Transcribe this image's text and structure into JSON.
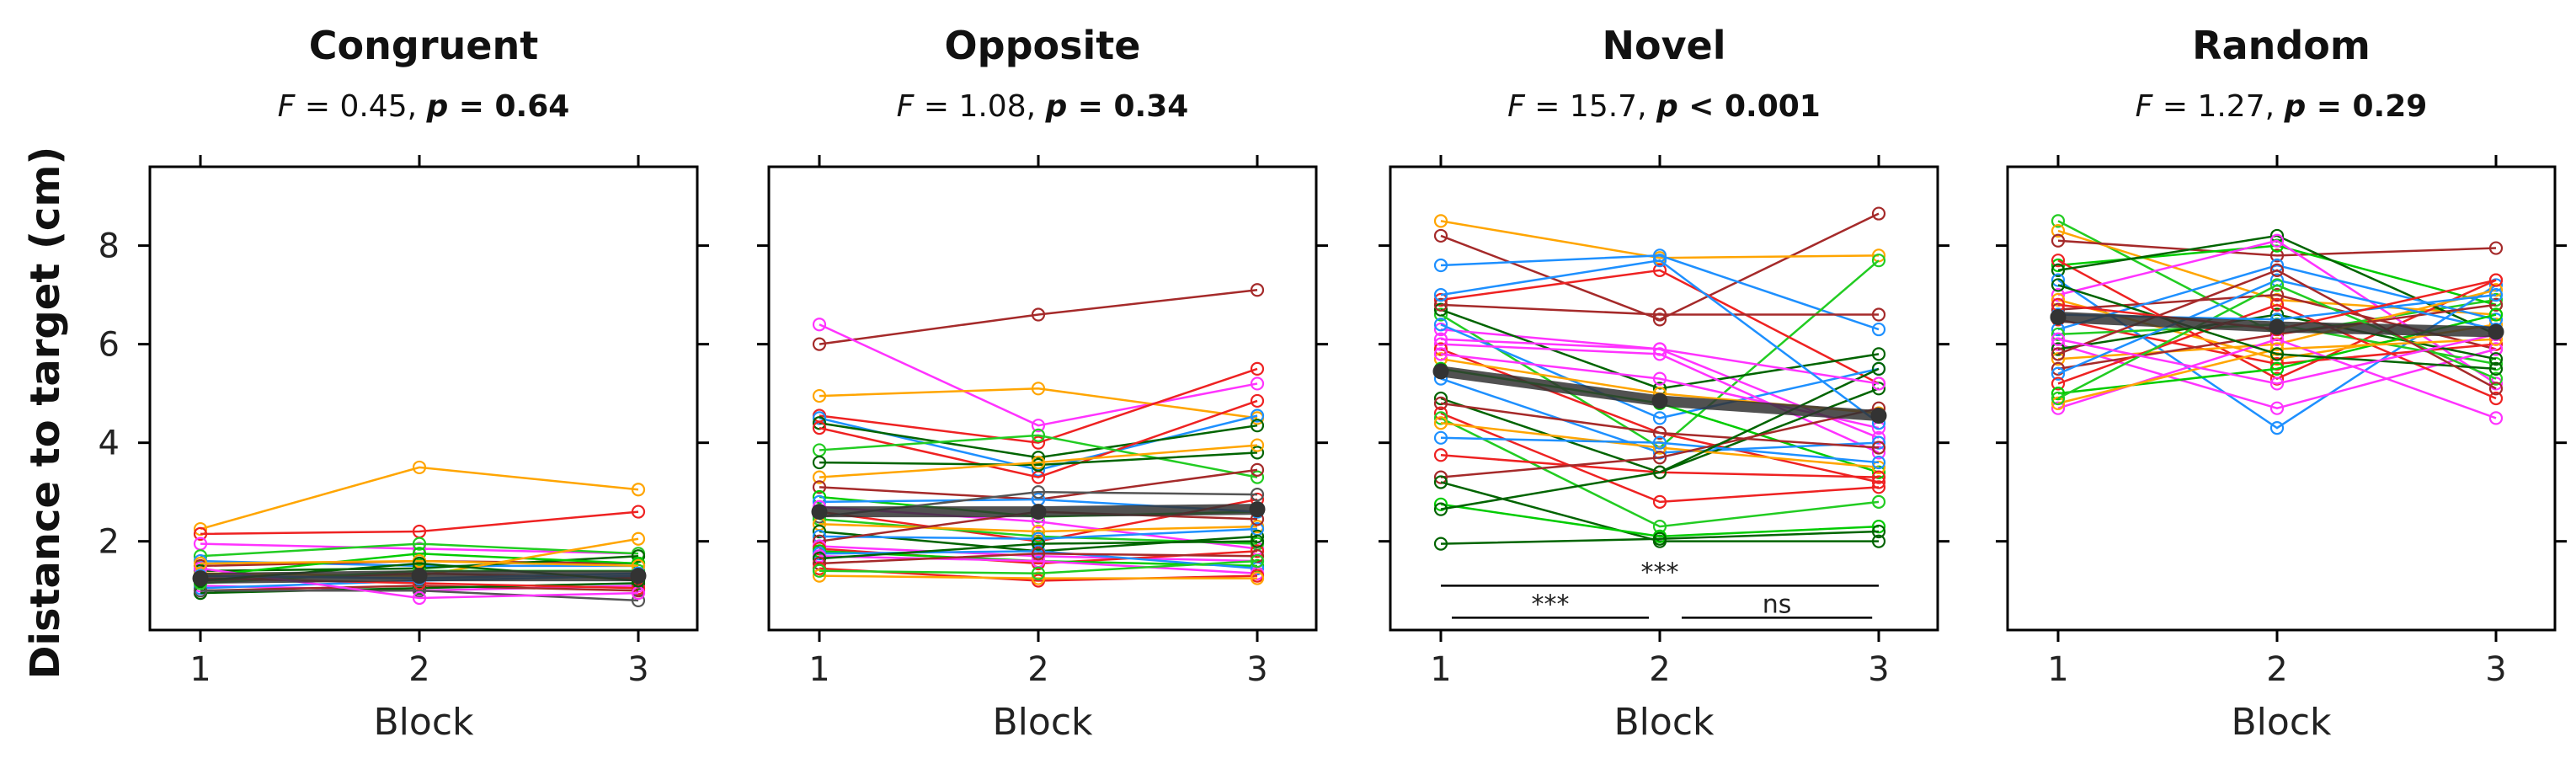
{
  "figure": {
    "ylabel": "Distance to target (cm)"
  },
  "chart_data": [
    {
      "type": "line",
      "title": "Congruent",
      "stat": {
        "f_label": "F",
        "f_text": " = 0.45, ",
        "p_label": "p",
        "p_text": " = 0.64"
      },
      "xlabel": "Block",
      "x": [
        1,
        2,
        3
      ],
      "xticks": [
        "1",
        "2",
        "3"
      ],
      "ylim": [
        0.2,
        9.6
      ],
      "yticks": [
        2,
        4,
        6,
        8
      ],
      "ytick_labels": [
        "2",
        "4",
        "6",
        "8"
      ],
      "show_ytick_labels": true,
      "mean": {
        "values": [
          1.25,
          1.3,
          1.3
        ],
        "color": "#333333"
      },
      "series": [
        {
          "color": "#FFA500",
          "values": [
            2.25,
            3.5,
            3.05
          ]
        },
        {
          "color": "#EE2222",
          "values": [
            2.15,
            2.2,
            2.6
          ]
        },
        {
          "color": "#FF33FF",
          "values": [
            1.95,
            1.85,
            1.75
          ]
        },
        {
          "color": "#22CC22",
          "values": [
            1.7,
            1.95,
            1.75
          ]
        },
        {
          "color": "#1E90FF",
          "values": [
            1.6,
            1.5,
            1.5
          ]
        },
        {
          "color": "#A52A2A",
          "values": [
            1.5,
            1.6,
            1.55
          ]
        },
        {
          "color": "#006400",
          "values": [
            1.4,
            1.45,
            1.7
          ]
        },
        {
          "color": "#00CC00",
          "values": [
            1.3,
            1.75,
            1.55
          ]
        },
        {
          "color": "#FFA500",
          "values": [
            1.35,
            1.3,
            2.05
          ]
        },
        {
          "color": "#EE2222",
          "values": [
            1.2,
            1.35,
            1.25
          ]
        },
        {
          "color": "#FF33FF",
          "values": [
            1.1,
            1.0,
            1.1
          ]
        },
        {
          "color": "#1E90FF",
          "values": [
            1.05,
            1.2,
            1.3
          ]
        },
        {
          "color": "#A52A2A",
          "values": [
            1.0,
            1.1,
            1.0
          ]
        },
        {
          "color": "#006400",
          "values": [
            0.95,
            1.05,
            1.15
          ]
        },
        {
          "color": "#555555",
          "values": [
            1.0,
            1.0,
            0.8
          ]
        },
        {
          "color": "#22CC22",
          "values": [
            1.15,
            1.4,
            1.4
          ]
        },
        {
          "color": "#EE2222",
          "values": [
            1.25,
            1.15,
            1.05
          ]
        },
        {
          "color": "#FF33FF",
          "values": [
            1.45,
            0.85,
            0.95
          ]
        },
        {
          "color": "#FFA500",
          "values": [
            1.55,
            1.6,
            1.5
          ]
        },
        {
          "color": "#1E90FF",
          "values": [
            1.3,
            1.25,
            1.35
          ]
        },
        {
          "color": "#006400",
          "values": [
            1.2,
            1.55,
            1.2
          ]
        }
      ],
      "annotations": []
    },
    {
      "type": "line",
      "title": "Opposite",
      "stat": {
        "f_label": "F",
        "f_text": " = 1.08, ",
        "p_label": "p",
        "p_text": " = 0.34"
      },
      "xlabel": "Block",
      "x": [
        1,
        2,
        3
      ],
      "xticks": [
        "1",
        "2",
        "3"
      ],
      "ylim": [
        0.2,
        9.6
      ],
      "yticks": [
        2,
        4,
        6,
        8
      ],
      "ytick_labels": [],
      "show_ytick_labels": false,
      "mean": {
        "values": [
          2.6,
          2.6,
          2.65
        ],
        "color": "#333333"
      },
      "series": [
        {
          "color": "#A52A2A",
          "values": [
            6.0,
            6.6,
            7.1
          ]
        },
        {
          "color": "#FF33FF",
          "values": [
            6.4,
            4.35,
            5.2
          ]
        },
        {
          "color": "#FFA500",
          "values": [
            4.95,
            5.1,
            4.5
          ]
        },
        {
          "color": "#EE2222",
          "values": [
            4.55,
            4.0,
            5.5
          ]
        },
        {
          "color": "#1E90FF",
          "values": [
            4.5,
            3.45,
            4.55
          ]
        },
        {
          "color": "#006400",
          "values": [
            4.4,
            3.7,
            4.35
          ]
        },
        {
          "color": "#EE2222",
          "values": [
            4.3,
            3.3,
            4.85
          ]
        },
        {
          "color": "#22CC22",
          "values": [
            3.85,
            4.15,
            3.3
          ]
        },
        {
          "color": "#006400",
          "values": [
            3.6,
            3.55,
            3.8
          ]
        },
        {
          "color": "#FFA500",
          "values": [
            3.3,
            3.6,
            3.95
          ]
        },
        {
          "color": "#A52A2A",
          "values": [
            3.1,
            2.85,
            3.45
          ]
        },
        {
          "color": "#00CC00",
          "values": [
            2.9,
            2.5,
            2.6
          ]
        },
        {
          "color": "#1E90FF",
          "values": [
            2.8,
            2.85,
            2.6
          ]
        },
        {
          "color": "#FF33FF",
          "values": [
            2.7,
            2.4,
            1.85
          ]
        },
        {
          "color": "#EE2222",
          "values": [
            2.6,
            2.0,
            2.85
          ]
        },
        {
          "color": "#555555",
          "values": [
            2.5,
            3.0,
            2.95
          ]
        },
        {
          "color": "#22CC22",
          "values": [
            2.45,
            2.1,
            1.95
          ]
        },
        {
          "color": "#FFA500",
          "values": [
            2.35,
            2.2,
            2.3
          ]
        },
        {
          "color": "#006400",
          "values": [
            2.2,
            1.8,
            2.1
          ]
        },
        {
          "color": "#1E90FF",
          "values": [
            2.1,
            2.05,
            2.25
          ]
        },
        {
          "color": "#A52A2A",
          "values": [
            2.0,
            2.6,
            2.45
          ]
        },
        {
          "color": "#FF33FF",
          "values": [
            1.9,
            1.7,
            1.6
          ]
        },
        {
          "color": "#EE2222",
          "values": [
            1.85,
            1.55,
            1.8
          ]
        },
        {
          "color": "#00CC00",
          "values": [
            1.8,
            1.6,
            1.5
          ]
        },
        {
          "color": "#1E90FF",
          "values": [
            1.75,
            1.8,
            1.45
          ]
        },
        {
          "color": "#FF33FF",
          "values": [
            1.7,
            1.6,
            1.35
          ]
        },
        {
          "color": "#006400",
          "values": [
            1.65,
            1.95,
            2.0
          ]
        },
        {
          "color": "#A52A2A",
          "values": [
            1.55,
            1.75,
            1.7
          ]
        },
        {
          "color": "#EE2222",
          "values": [
            1.45,
            1.2,
            1.3
          ]
        },
        {
          "color": "#FFA500",
          "values": [
            1.3,
            1.25,
            1.25
          ]
        },
        {
          "color": "#22CC22",
          "values": [
            1.4,
            1.35,
            1.6
          ]
        }
      ],
      "annotations": []
    },
    {
      "type": "line",
      "title": "Novel",
      "stat": {
        "f_label": "F",
        "f_text": " = 15.7, ",
        "p_label": "p",
        "p_text": "  < 0.001"
      },
      "xlabel": "Block",
      "x": [
        1,
        2,
        3
      ],
      "xticks": [
        "1",
        "2",
        "3"
      ],
      "ylim": [
        0.2,
        9.6
      ],
      "yticks": [
        2,
        4,
        6,
        8
      ],
      "ytick_labels": [],
      "show_ytick_labels": false,
      "mean": {
        "values": [
          5.45,
          4.85,
          4.55
        ],
        "color": "#333333"
      },
      "series": [
        {
          "color": "#A52A2A",
          "values": [
            8.2,
            6.5,
            8.65
          ]
        },
        {
          "color": "#FFA500",
          "values": [
            8.5,
            7.75,
            7.8
          ]
        },
        {
          "color": "#1E90FF",
          "values": [
            7.6,
            7.8,
            6.3
          ]
        },
        {
          "color": "#22CC22",
          "values": [
            6.6,
            3.9,
            7.7
          ]
        },
        {
          "color": "#EE2222",
          "values": [
            6.9,
            7.5,
            5.2
          ]
        },
        {
          "color": "#FF33FF",
          "values": [
            6.3,
            5.9,
            4.1
          ]
        },
        {
          "color": "#006400",
          "values": [
            6.7,
            5.1,
            5.8
          ]
        },
        {
          "color": "#A52A2A",
          "values": [
            6.8,
            6.6,
            6.6
          ]
        },
        {
          "color": "#1E90FF",
          "values": [
            6.4,
            4.5,
            5.5
          ]
        },
        {
          "color": "#FF33FF",
          "values": [
            6.0,
            5.8,
            3.8
          ]
        },
        {
          "color": "#EE2222",
          "values": [
            5.9,
            4.2,
            3.2
          ]
        },
        {
          "color": "#FFA500",
          "values": [
            5.7,
            5.0,
            4.6
          ]
        },
        {
          "color": "#00CC00",
          "values": [
            5.5,
            4.8,
            3.4
          ]
        },
        {
          "color": "#1E90FF",
          "values": [
            5.3,
            3.8,
            4.0
          ]
        },
        {
          "color": "#FF33FF",
          "values": [
            5.8,
            5.3,
            4.3
          ]
        },
        {
          "color": "#006400",
          "values": [
            4.9,
            3.4,
            5.1
          ]
        },
        {
          "color": "#A52A2A",
          "values": [
            4.8,
            4.2,
            3.9
          ]
        },
        {
          "color": "#EE2222",
          "values": [
            4.6,
            2.8,
            3.1
          ]
        },
        {
          "color": "#22CC22",
          "values": [
            4.5,
            2.3,
            2.8
          ]
        },
        {
          "color": "#FFA500",
          "values": [
            4.4,
            3.9,
            3.5
          ]
        },
        {
          "color": "#1E90FF",
          "values": [
            4.1,
            4.0,
            3.6
          ]
        },
        {
          "color": "#EE2222",
          "values": [
            3.75,
            3.4,
            3.3
          ]
        },
        {
          "color": "#A52A2A",
          "values": [
            3.3,
            3.7,
            4.7
          ]
        },
        {
          "color": "#006400",
          "values": [
            3.2,
            2.0,
            2.0
          ]
        },
        {
          "color": "#00CC00",
          "values": [
            2.75,
            2.1,
            2.3
          ]
        },
        {
          "color": "#006400",
          "values": [
            2.65,
            3.4,
            5.5
          ]
        },
        {
          "color": "#006400",
          "values": [
            1.95,
            2.05,
            2.2
          ]
        },
        {
          "color": "#FF33FF",
          "values": [
            6.1,
            5.9,
            5.2
          ]
        },
        {
          "color": "#1E90FF",
          "values": [
            7.0,
            7.7,
            4.4
          ]
        }
      ],
      "annotations": [
        {
          "text": "***",
          "x1": 1,
          "x2": 3,
          "y": 1.1
        },
        {
          "text": "***",
          "x1": 1.05,
          "x2": 1.95,
          "y": 0.45
        },
        {
          "text": "ns",
          "x1": 2.1,
          "x2": 2.97,
          "y": 0.45
        }
      ]
    },
    {
      "type": "line",
      "title": "Random",
      "stat": {
        "f_label": "F",
        "f_text": " = 1.27, ",
        "p_label": "p",
        "p_text": " = 0.29"
      },
      "xlabel": "Block",
      "x": [
        1,
        2,
        3
      ],
      "xticks": [
        "1",
        "2",
        "3"
      ],
      "ylim": [
        0.2,
        9.6
      ],
      "yticks": [
        2,
        4,
        6,
        8
      ],
      "ytick_labels": [],
      "show_ytick_labels": false,
      "mean": {
        "values": [
          6.55,
          6.35,
          6.25
        ],
        "color": "#333333"
      },
      "series": [
        {
          "color": "#22CC22",
          "values": [
            8.5,
            6.2,
            6.9
          ]
        },
        {
          "color": "#FFA500",
          "values": [
            8.3,
            6.9,
            6.6
          ]
        },
        {
          "color": "#A52A2A",
          "values": [
            8.1,
            7.8,
            7.95
          ]
        },
        {
          "color": "#00CC00",
          "values": [
            7.6,
            8.0,
            6.8
          ]
        },
        {
          "color": "#EE2222",
          "values": [
            7.7,
            5.3,
            7.3
          ]
        },
        {
          "color": "#006400",
          "values": [
            7.5,
            8.2,
            6.2
          ]
        },
        {
          "color": "#1E90FF",
          "values": [
            7.3,
            4.3,
            7.2
          ]
        },
        {
          "color": "#FF33FF",
          "values": [
            7.0,
            8.1,
            5.2
          ]
        },
        {
          "color": "#FFA500",
          "values": [
            6.9,
            5.7,
            6.4
          ]
        },
        {
          "color": "#A52A2A",
          "values": [
            6.7,
            7.0,
            5.9
          ]
        },
        {
          "color": "#EE2222",
          "values": [
            6.5,
            5.6,
            6.0
          ]
        },
        {
          "color": "#1E90FF",
          "values": [
            6.3,
            7.6,
            6.5
          ]
        },
        {
          "color": "#22CC22",
          "values": [
            6.2,
            6.4,
            5.6
          ]
        },
        {
          "color": "#FF33FF",
          "values": [
            6.0,
            4.7,
            5.9
          ]
        },
        {
          "color": "#006400",
          "values": [
            5.9,
            6.6,
            5.7
          ]
        },
        {
          "color": "#FFA500",
          "values": [
            5.7,
            6.0,
            7.1
          ]
        },
        {
          "color": "#A52A2A",
          "values": [
            5.5,
            6.2,
            6.8
          ]
        },
        {
          "color": "#1E90FF",
          "values": [
            5.4,
            7.3,
            6.3
          ]
        },
        {
          "color": "#EE2222",
          "values": [
            5.2,
            6.8,
            4.9
          ]
        },
        {
          "color": "#00CC00",
          "values": [
            5.0,
            5.5,
            6.6
          ]
        },
        {
          "color": "#FF33FF",
          "values": [
            4.7,
            6.1,
            4.5
          ]
        },
        {
          "color": "#FFA500",
          "values": [
            4.8,
            5.9,
            6.1
          ]
        },
        {
          "color": "#22CC22",
          "values": [
            4.9,
            7.2,
            5.3
          ]
        },
        {
          "color": "#006400",
          "values": [
            7.2,
            5.8,
            5.5
          ]
        },
        {
          "color": "#1E90FF",
          "values": [
            6.6,
            6.5,
            7.0
          ]
        },
        {
          "color": "#A52A2A",
          "values": [
            5.8,
            7.5,
            5.1
          ]
        },
        {
          "color": "#EE2222",
          "values": [
            6.8,
            6.3,
            7.3
          ]
        },
        {
          "color": "#FF33FF",
          "values": [
            6.1,
            5.2,
            6.2
          ]
        }
      ],
      "annotations": []
    }
  ]
}
